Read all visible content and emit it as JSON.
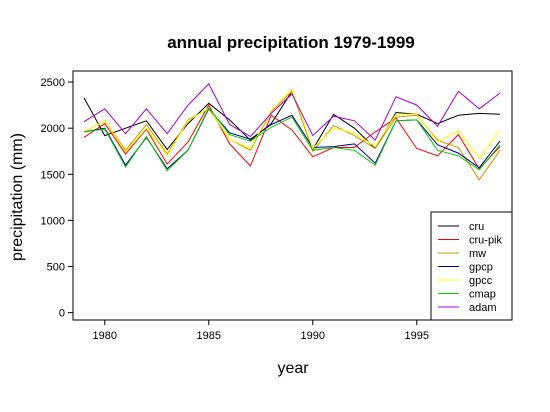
{
  "chart_data": {
    "type": "line",
    "title": "annual precipitation 1979-1999",
    "xlabel": "year",
    "ylabel": "precipitation (mm)",
    "xlim": [
      1978.5,
      1999.5
    ],
    "ylim": [
      -80,
      2620
    ],
    "x_ticks": [
      1980,
      1985,
      1990,
      1995
    ],
    "y_ticks": [
      0,
      500,
      1000,
      1500,
      2000,
      2500
    ],
    "grid": false,
    "legend_position": "bottom-right",
    "x": [
      1979,
      1980,
      1981,
      1982,
      1983,
      1984,
      1985,
      1986,
      1987,
      1988,
      1989,
      1990,
      1991,
      1992,
      1993,
      1994,
      1995,
      1996,
      1997,
      1998,
      1999
    ],
    "series": [
      {
        "name": "cru",
        "color": "#000000",
        "values": [
          2330,
          1920,
          2000,
          2080,
          1770,
          2050,
          2270,
          2090,
          1870,
          2050,
          2400,
          1770,
          2150,
          2000,
          1780,
          2170,
          2150,
          2050,
          2140,
          2160,
          2150
        ]
      },
      {
        "name": "cru-pik",
        "color": "#ff0000",
        "values": [
          1900,
          2050,
          1720,
          1990,
          1610,
          1850,
          2250,
          1830,
          1590,
          2140,
          1980,
          1690,
          1790,
          1790,
          1960,
          2110,
          1780,
          1700,
          1930,
          1560,
          1800
        ]
      },
      {
        "name": "mw",
        "color": "#cc9900",
        "values": [
          1960,
          2080,
          1760,
          2040,
          1720,
          2090,
          2210,
          1880,
          1760,
          2180,
          2400,
          1750,
          2030,
          1920,
          1780,
          2120,
          2140,
          1870,
          1790,
          1440,
          1760
        ]
      },
      {
        "name": "gpcp",
        "color": "#000080",
        "values": [
          1960,
          2000,
          1600,
          1900,
          1560,
          1760,
          2210,
          1950,
          1880,
          2040,
          2140,
          1790,
          1800,
          1830,
          1620,
          2080,
          2090,
          1820,
          1730,
          1570,
          1860
        ]
      },
      {
        "name": "gpcc",
        "color": "#ffff00",
        "values": [
          1960,
          2080,
          1740,
          2000,
          1700,
          2080,
          2220,
          1880,
          1780,
          2190,
          2420,
          1780,
          2000,
          1950,
          1800,
          2150,
          2150,
          1850,
          1970,
          1670,
          1980
        ]
      },
      {
        "name": "cmap",
        "color": "#00cc00",
        "values": [
          1960,
          1990,
          1580,
          1910,
          1540,
          1760,
          2220,
          1930,
          1860,
          2010,
          2120,
          1760,
          1790,
          1760,
          1600,
          2080,
          2090,
          1760,
          1700,
          1550,
          1820
        ]
      },
      {
        "name": "adam",
        "color": "#aa00dd",
        "values": [
          2070,
          2210,
          1940,
          2210,
          1940,
          2250,
          2480,
          2040,
          1910,
          2160,
          2370,
          1920,
          2130,
          2080,
          1870,
          2340,
          2250,
          2020,
          2400,
          2210,
          2380
        ]
      }
    ]
  }
}
